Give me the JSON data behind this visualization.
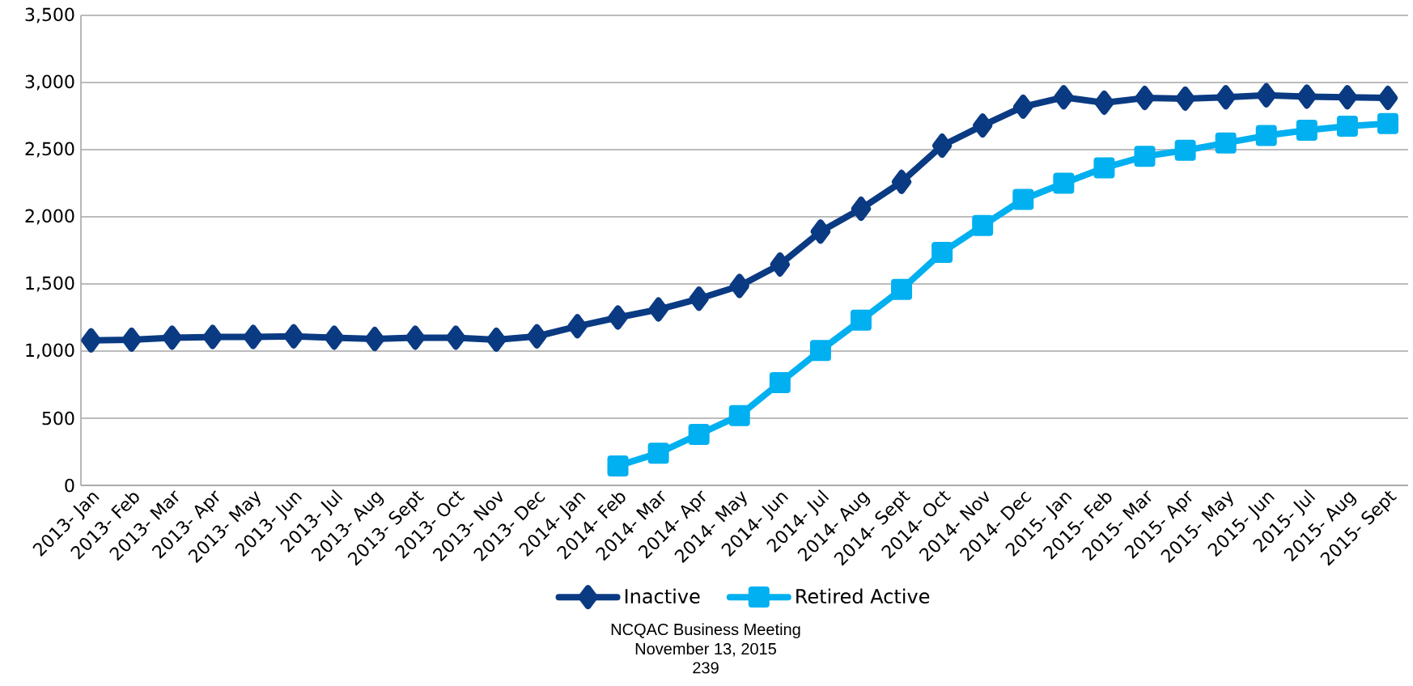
{
  "chart_data": {
    "type": "line",
    "categories": [
      "2013- Jan",
      "2013- Feb",
      "2013- Mar",
      "2013- Apr",
      "2013- May",
      "2013- Jun",
      "2013- Jul",
      "2013- Aug",
      "2013- Sept",
      "2013- Oct",
      "2013- Nov",
      "2013- Dec",
      "2014- Jan",
      "2014- Feb",
      "2014- Mar",
      "2014- Apr",
      "2014- May",
      "2014- Jun",
      "2014- Jul",
      "2014- Aug",
      "2014- Sept",
      "2014- Oct",
      "2014- Nov",
      "2014- Dec",
      "2015- Jan",
      "2015- Feb",
      "2015- Mar",
      "2015- Apr",
      "2015- May",
      "2015- Jun",
      "2015- Jul",
      "2015- Aug",
      "2015- Sept"
    ],
    "series": [
      {
        "name": "Inactive",
        "color": "#0a3a82",
        "marker": "diamond",
        "values": [
          1080,
          1085,
          1100,
          1105,
          1105,
          1110,
          1100,
          1090,
          1100,
          1100,
          1085,
          1110,
          1185,
          1250,
          1310,
          1390,
          1485,
          1645,
          1890,
          2060,
          2260,
          2530,
          2680,
          2820,
          2890,
          2850,
          2885,
          2880,
          2890,
          2905,
          2895,
          2890,
          2885
        ]
      },
      {
        "name": "Retired Active",
        "color": "#00b0f0",
        "marker": "square",
        "values": [
          null,
          null,
          null,
          null,
          null,
          null,
          null,
          null,
          null,
          null,
          null,
          null,
          null,
          145,
          240,
          380,
          520,
          765,
          1005,
          1230,
          1460,
          1735,
          1935,
          2130,
          2250,
          2365,
          2450,
          2495,
          2550,
          2605,
          2645,
          2675,
          2695
        ]
      }
    ],
    "ylim": [
      0,
      3500
    ],
    "yticks": [
      0,
      500,
      {
        "value": 1000,
        "label": "1,000"
      },
      {
        "value": 1500,
        "label": "1,500"
      },
      {
        "value": 2000,
        "label": "2,000"
      },
      {
        "value": 2500,
        "label": "2,500"
      },
      {
        "value": 3000,
        "label": "3,000"
      },
      {
        "value": 3500,
        "label": "3,500"
      }
    ],
    "grid": "y",
    "legend": "bottom",
    "annotations": [
      "NCQAC Business Meeting",
      "November 13, 2015",
      "239"
    ]
  }
}
